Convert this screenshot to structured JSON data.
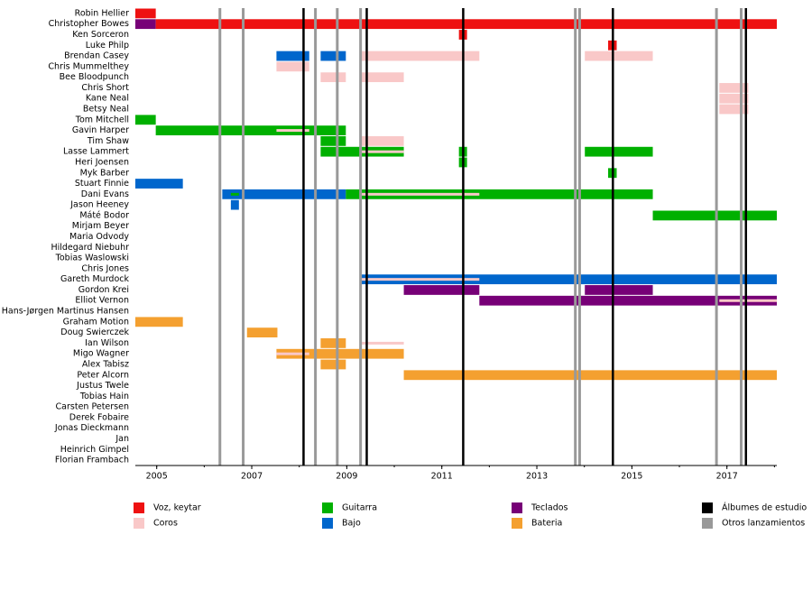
{
  "chart_data": {
    "type": "timeline",
    "members": [
      "Robin Hellier",
      "Christopher Bowes",
      "Ken Sorceron",
      "Luke Philp",
      "Brendan Casey",
      "Chris Mummelthey",
      "Bee Bloodpunch",
      "Chris Short",
      "Kane Neal",
      "Betsy Neal",
      "Tom Mitchell",
      "Gavin Harper",
      "Tim Shaw",
      "Lasse Lammert",
      "Heri Joensen",
      "Myk Barber",
      "Stuart Finnie",
      "Dani Evans",
      "Jason Heeney",
      "Máté Bodor",
      "Mirjam Beyer",
      "Maria Odvody",
      "Hildegard Niebuhr",
      "Tobias Waslowski",
      "Chris Jones",
      "Gareth Murdock",
      "Gordon Krei",
      "Elliot Vernon",
      "Hans-Jørgen Martinus Hansen",
      "Graham Motion",
      "Doug Swierczek",
      "Ian Wilson",
      "Migo Wagner",
      "Alex Tabisz",
      "Peter Alcorn",
      "Justus Twele",
      "Tobias Hain",
      "Carsten Petersen",
      "Derek Fobaire",
      "Jonas Dieckmann",
      "Jan",
      "Heinrich Gimpel",
      "Florian Frambach"
    ],
    "roles": [
      {
        "name": "Voz, keytar",
        "color": "#ee1111"
      },
      {
        "name": "Coros",
        "color": "#f9c8c8"
      },
      {
        "name": "Guitarra",
        "color": "#00b000"
      },
      {
        "name": "Bajo",
        "color": "#0066cc"
      },
      {
        "name": "Teclados",
        "color": "#770077"
      },
      {
        "name": "Bateria",
        "color": "#f4a030"
      }
    ],
    "bars": [
      {
        "member": 0,
        "role": 0,
        "start": 2004.55,
        "end": 2004.98
      },
      {
        "member": 1,
        "role": 4,
        "start": 2004.55,
        "end": 2004.98
      },
      {
        "member": 1,
        "role": 0,
        "start": 2004.98,
        "end": 2018.05
      },
      {
        "member": 2,
        "role": 0,
        "start": 2011.36,
        "end": 2011.53
      },
      {
        "member": 3,
        "role": 0,
        "start": 2014.5,
        "end": 2014.68
      },
      {
        "member": 4,
        "role": 3,
        "start": 2007.52,
        "end": 2008.21
      },
      {
        "member": 4,
        "role": 3,
        "start": 2008.45,
        "end": 2008.98
      },
      {
        "member": 4,
        "role": 1,
        "start": 2009.29,
        "end": 2011.79
      },
      {
        "member": 4,
        "role": 1,
        "start": 2014.01,
        "end": 2015.44
      },
      {
        "member": 5,
        "role": 1,
        "start": 2007.52,
        "end": 2008.21
      },
      {
        "member": 6,
        "role": 1,
        "start": 2008.45,
        "end": 2008.98
      },
      {
        "member": 6,
        "role": 1,
        "start": 2009.29,
        "end": 2010.2
      },
      {
        "member": 7,
        "role": 1,
        "start": 2016.84,
        "end": 2017.45
      },
      {
        "member": 8,
        "role": 1,
        "start": 2016.84,
        "end": 2017.45
      },
      {
        "member": 9,
        "role": 1,
        "start": 2016.84,
        "end": 2017.45
      },
      {
        "member": 10,
        "role": 2,
        "start": 2004.55,
        "end": 2004.98
      },
      {
        "member": 11,
        "role": 2,
        "start": 2004.98,
        "end": 2008.98
      },
      {
        "member": 11,
        "role": 1,
        "start": 2007.52,
        "end": 2008.21,
        "secondary": true
      },
      {
        "member": 12,
        "role": 2,
        "start": 2008.45,
        "end": 2008.98
      },
      {
        "member": 12,
        "role": 1,
        "start": 2009.29,
        "end": 2010.2
      },
      {
        "member": 13,
        "role": 2,
        "start": 2008.45,
        "end": 2010.2
      },
      {
        "member": 13,
        "role": 1,
        "start": 2009.29,
        "end": 2010.2,
        "secondary": true
      },
      {
        "member": 13,
        "role": 2,
        "start": 2011.36,
        "end": 2011.53
      },
      {
        "member": 13,
        "role": 2,
        "start": 2014.01,
        "end": 2015.44
      },
      {
        "member": 14,
        "role": 2,
        "start": 2011.36,
        "end": 2011.53
      },
      {
        "member": 15,
        "role": 2,
        "start": 2014.5,
        "end": 2014.68
      },
      {
        "member": 16,
        "role": 3,
        "start": 2004.55,
        "end": 2005.55
      },
      {
        "member": 17,
        "role": 3,
        "start": 2006.38,
        "end": 2008.98
      },
      {
        "member": 17,
        "role": 2,
        "start": 2006.56,
        "end": 2006.73,
        "secondary": true
      },
      {
        "member": 17,
        "role": 2,
        "start": 2008.98,
        "end": 2015.44
      },
      {
        "member": 17,
        "role": 1,
        "start": 2009.29,
        "end": 2011.79,
        "secondary": true
      },
      {
        "member": 18,
        "role": 3,
        "start": 2006.56,
        "end": 2006.73
      },
      {
        "member": 19,
        "role": 2,
        "start": 2015.44,
        "end": 2018.05
      },
      {
        "member": 25,
        "role": 3,
        "start": 2009.29,
        "end": 2018.05
      },
      {
        "member": 25,
        "role": 1,
        "start": 2009.29,
        "end": 2011.79,
        "secondary": true
      },
      {
        "member": 26,
        "role": 4,
        "start": 2010.2,
        "end": 2011.79
      },
      {
        "member": 26,
        "role": 4,
        "start": 2014.01,
        "end": 2015.44
      },
      {
        "member": 27,
        "role": 4,
        "start": 2011.79,
        "end": 2018.05
      },
      {
        "member": 27,
        "role": 1,
        "start": 2016.84,
        "end": 2018.05,
        "secondary": true
      },
      {
        "member": 29,
        "role": 5,
        "start": 2004.55,
        "end": 2005.55
      },
      {
        "member": 30,
        "role": 5,
        "start": 2006.9,
        "end": 2007.54
      },
      {
        "member": 31,
        "role": 5,
        "start": 2008.45,
        "end": 2008.98
      },
      {
        "member": 31,
        "role": 1,
        "start": 2009.29,
        "end": 2010.2,
        "secondary": true
      },
      {
        "member": 32,
        "role": 5,
        "start": 2007.52,
        "end": 2010.2
      },
      {
        "member": 32,
        "role": 1,
        "start": 2007.52,
        "end": 2008.21,
        "secondary": true
      },
      {
        "member": 33,
        "role": 5,
        "start": 2008.45,
        "end": 2008.98
      },
      {
        "member": 34,
        "role": 5,
        "start": 2010.2,
        "end": 2018.05
      }
    ],
    "releases": [
      {
        "name": "Álbumes de estudio",
        "color": "#000000",
        "dates": [
          2008.09,
          2009.42,
          2011.45,
          2014.6,
          2017.4
        ]
      },
      {
        "name": "Otros lanzamientos",
        "color": "#999999",
        "dates": [
          2006.33,
          2006.82,
          2008.34,
          2008.8,
          2009.29,
          2013.81,
          2013.9,
          2016.78,
          2017.3
        ]
      }
    ],
    "xlim": [
      2004.55,
      2018.05
    ],
    "xticks": [
      2005,
      2007,
      2009,
      2011,
      2013,
      2015,
      2017
    ]
  }
}
